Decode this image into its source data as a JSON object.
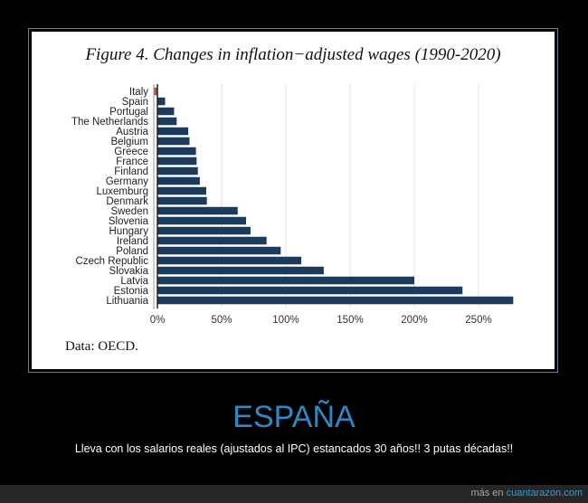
{
  "chart_data": {
    "type": "bar",
    "orientation": "horizontal",
    "title": "Figure 4. Changes in inflation−adjusted wages (1990-2020)",
    "source": "Data: OECD.",
    "categories": [
      "Italy",
      "Spain",
      "Portugal",
      "The Netherlands",
      "Austria",
      "Belgium",
      "Greece",
      "France",
      "Finland",
      "Germany",
      "Luxemburg",
      "Denmark",
      "Sweden",
      "Slovenia",
      "Hungary",
      "Ireland",
      "Poland",
      "Czech Republic",
      "Slovakia",
      "Latvia",
      "Estonia",
      "Lithuania"
    ],
    "values": [
      -3,
      6,
      13,
      15,
      24,
      25,
      30,
      30.5,
      31.5,
      33,
      38,
      38.5,
      62.5,
      69,
      72.5,
      85,
      96,
      112,
      129.5,
      200,
      237.5,
      277
    ],
    "value_unit": "%",
    "xlim": [
      0,
      280
    ],
    "xticks": [
      0,
      50,
      100,
      150,
      200,
      250
    ],
    "xtick_labels": [
      "0%",
      "50%",
      "100%",
      "150%",
      "200%",
      "250%"
    ],
    "grid": "vertical",
    "colors": {
      "bar": "#1b3a5c",
      "negative_bar": "#c0504d",
      "grid": "#e3e3e3"
    }
  },
  "caption": {
    "headline": "ESPAÑA",
    "text": "Lleva con los salarios reales (ajustados al IPC) estancados 30 años!! 3 putas décadas!!"
  },
  "footer": {
    "prefix": "más en",
    "link": "cuantarazon.com"
  },
  "colors": {
    "background": "#000000",
    "headline": "#2f88c4",
    "footer_bg": "#262626"
  }
}
